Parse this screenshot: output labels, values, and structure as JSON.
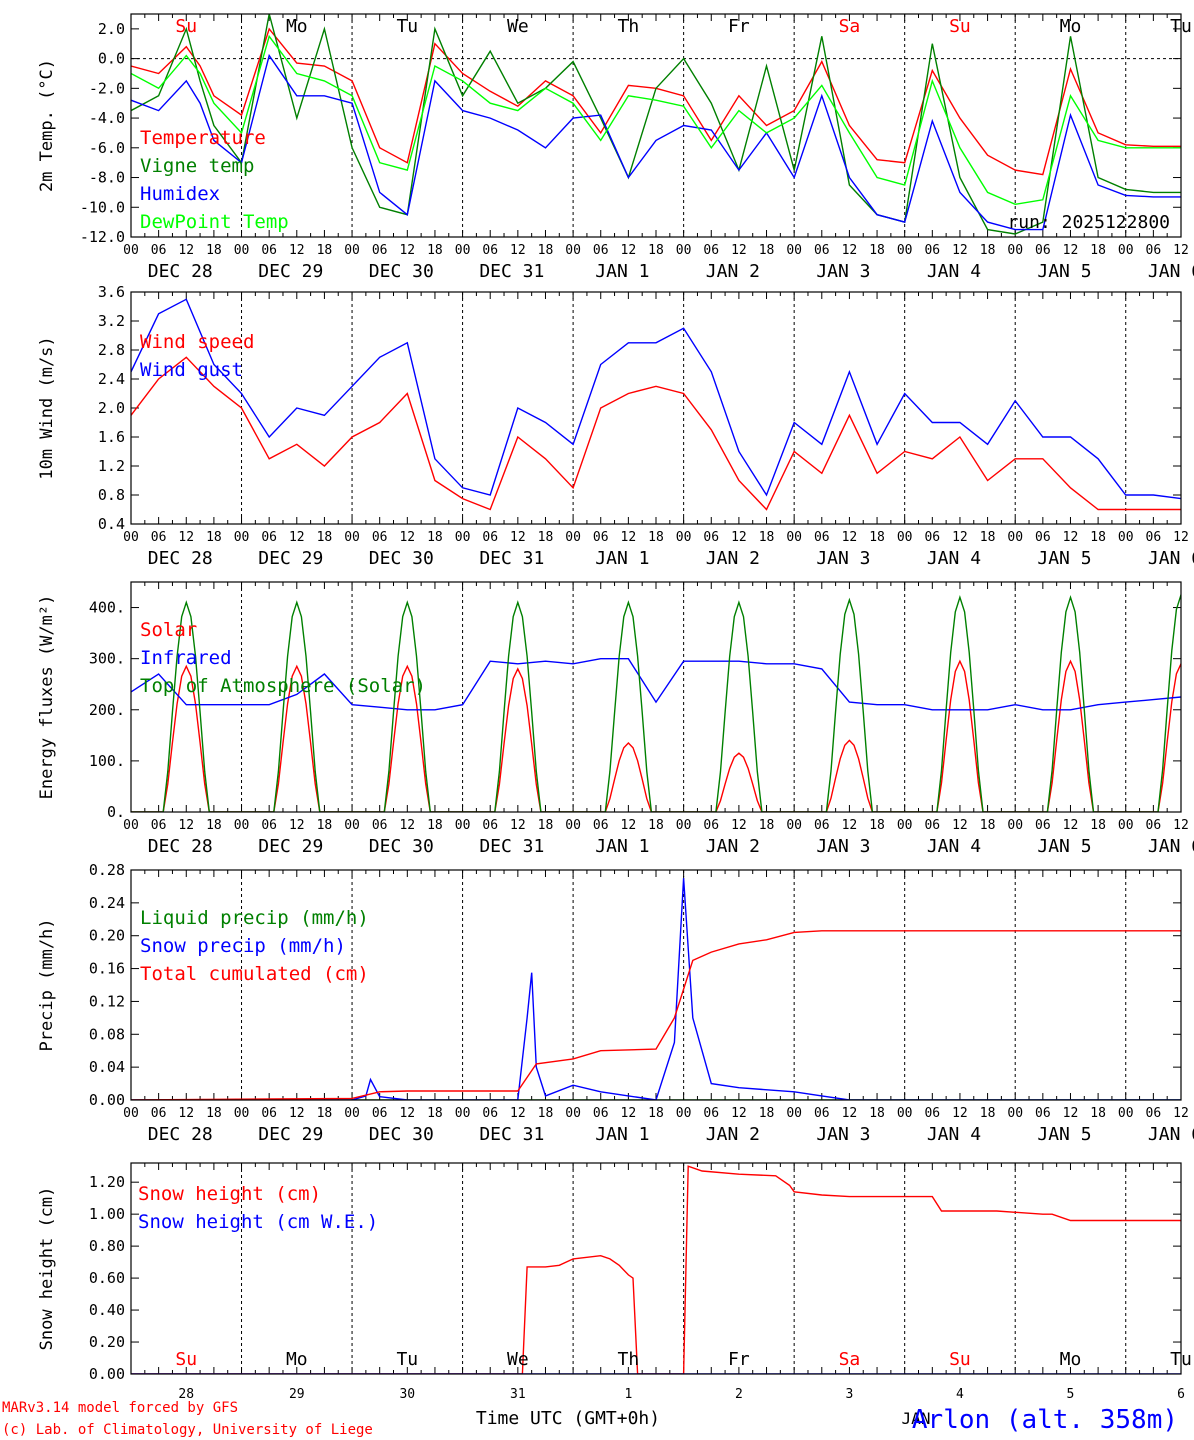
{
  "figure": {
    "run_label": "run: 2025122800",
    "station": "Arlon (alt. 358m)",
    "credit_line1": "MARv3.14 model forced by GFS",
    "credit_line2": "(c) Lab. of Climatology, University of Liege",
    "time_axis_label": "Time UTC (GMT+0h)",
    "month_label": "JAN"
  },
  "days": [
    {
      "dow": "Su",
      "date": "DEC 28",
      "num": "28",
      "weekend": true
    },
    {
      "dow": "Mo",
      "date": "DEC 29",
      "num": "29",
      "weekend": false
    },
    {
      "dow": "Tu",
      "date": "DEC 30",
      "num": "30",
      "weekend": false
    },
    {
      "dow": "We",
      "date": "DEC 31",
      "num": "31",
      "weekend": false
    },
    {
      "dow": "Th",
      "date": "JAN  1",
      "num": "1",
      "weekend": false
    },
    {
      "dow": "Fr",
      "date": "JAN  2",
      "num": "2",
      "weekend": false
    },
    {
      "dow": "Sa",
      "date": "JAN  3",
      "num": "3",
      "weekend": true
    },
    {
      "dow": "Su",
      "date": "JAN  4",
      "num": "4",
      "weekend": true
    },
    {
      "dow": "Mo",
      "date": "JAN  5",
      "num": "5",
      "weekend": false
    },
    {
      "dow": "Tu",
      "date": "JAN  6",
      "num": "6",
      "weekend": false
    }
  ],
  "hour_labels": [
    "00",
    "06",
    "12",
    "18"
  ],
  "colors": {
    "red": "#ff0000",
    "green": "#008000",
    "blue": "#0000ff",
    "lightgreen": "#00ff00",
    "weekend": "#ff0000",
    "axis": "#000000"
  },
  "chart_data": [
    {
      "type": "line",
      "ylabel": "2m Temp. (°C)",
      "ylim": [
        -12,
        3
      ],
      "yticks": [
        2.0,
        0.0,
        -2.0,
        -4.0,
        -6.0,
        -8.0,
        -10.0,
        -12.0
      ],
      "ytick_labels": [
        "2.0",
        "0.0",
        "-2.0",
        "-4.0",
        "-6.0",
        "-8.0",
        "-10.0",
        "-12.0"
      ],
      "x_unit": "hours since DEC 28 00 UTC",
      "zero_line": true,
      "series": [
        {
          "name": "Temperature",
          "color": "#ff0000",
          "x": [
            0,
            6,
            12,
            15,
            18,
            24,
            30,
            36,
            42,
            48,
            54,
            60,
            66,
            72,
            78,
            84,
            90,
            96,
            102,
            108,
            114,
            120,
            126,
            132,
            138,
            144,
            150,
            156,
            162,
            168,
            174,
            180,
            186,
            192,
            198,
            204,
            210,
            216,
            222,
            228
          ],
          "y": [
            -0.5,
            -1.0,
            0.8,
            -0.5,
            -2.5,
            -3.8,
            2.0,
            -0.3,
            -0.5,
            -1.5,
            -6.0,
            -7.0,
            1.0,
            -1.0,
            -2.2,
            -3.2,
            -1.5,
            -2.5,
            -5.0,
            -1.8,
            -2.0,
            -2.5,
            -5.5,
            -2.5,
            -4.5,
            -3.5,
            -0.2,
            -4.5,
            -6.8,
            -7.0,
            -0.8,
            -4.0,
            -6.5,
            -7.5,
            -7.8,
            -0.7,
            -5.0,
            -5.8,
            -5.9,
            -5.9
          ]
        },
        {
          "name": "Vigne temp",
          "color": "#008000",
          "x": [
            0,
            6,
            12,
            15,
            18,
            24,
            30,
            36,
            42,
            48,
            54,
            60,
            66,
            72,
            78,
            84,
            90,
            96,
            102,
            108,
            114,
            120,
            126,
            132,
            138,
            144,
            150,
            156,
            162,
            168,
            174,
            180,
            186,
            192,
            198,
            204,
            210,
            216,
            222,
            228
          ],
          "y": [
            -3.5,
            -2.5,
            2.0,
            -1.5,
            -4.5,
            -7.0,
            3.0,
            -4.0,
            2.0,
            -6.0,
            -10.0,
            -10.5,
            2.0,
            -2.5,
            0.5,
            -3.0,
            -2.0,
            -0.2,
            -4.0,
            -8.0,
            -2.0,
            0.0,
            -3.0,
            -7.5,
            -0.5,
            -7.5,
            1.5,
            -8.5,
            -10.5,
            -11.0,
            1.0,
            -8.0,
            -11.5,
            -11.8,
            -11.0,
            1.5,
            -8.0,
            -8.8,
            -9.0,
            -9.0
          ]
        },
        {
          "name": "Humidex",
          "color": "#0000ff",
          "x": [
            0,
            6,
            12,
            15,
            18,
            24,
            30,
            36,
            42,
            48,
            54,
            60,
            66,
            72,
            78,
            84,
            90,
            96,
            102,
            108,
            114,
            120,
            126,
            132,
            138,
            144,
            150,
            156,
            162,
            168,
            174,
            180,
            186,
            192,
            198,
            204,
            210,
            216,
            222,
            228
          ],
          "y": [
            -2.8,
            -3.5,
            -1.5,
            -3.0,
            -5.5,
            -7.0,
            0.2,
            -2.5,
            -2.5,
            -3.0,
            -9.0,
            -10.5,
            -1.5,
            -3.5,
            -4.0,
            -4.8,
            -6.0,
            -4.0,
            -3.8,
            -8.0,
            -5.5,
            -4.5,
            -4.8,
            -7.5,
            -5.0,
            -8.0,
            -2.5,
            -8.0,
            -10.5,
            -11.0,
            -4.2,
            -9.0,
            -11.0,
            -11.5,
            -11.5,
            -3.8,
            -8.5,
            -9.2,
            -9.3,
            -9.3
          ]
        },
        {
          "name": "DewPoint Temp",
          "color": "#00ff00",
          "x": [
            0,
            6,
            12,
            15,
            18,
            24,
            30,
            36,
            42,
            48,
            54,
            60,
            66,
            72,
            78,
            84,
            90,
            96,
            102,
            108,
            114,
            120,
            126,
            132,
            138,
            144,
            150,
            156,
            162,
            168,
            174,
            180,
            186,
            192,
            198,
            204,
            210,
            216,
            222,
            228
          ],
          "y": [
            -1.0,
            -2.0,
            0.2,
            -1.0,
            -3.0,
            -5.0,
            1.5,
            -1.0,
            -1.5,
            -2.5,
            -7.0,
            -7.5,
            -0.5,
            -1.5,
            -3.0,
            -3.5,
            -2.0,
            -3.0,
            -5.5,
            -2.5,
            -2.8,
            -3.2,
            -6.0,
            -3.5,
            -5.0,
            -4.0,
            -1.8,
            -5.0,
            -8.0,
            -8.5,
            -1.5,
            -6.0,
            -9.0,
            -9.8,
            -9.5,
            -2.5,
            -5.5,
            -6.0,
            -6.0,
            -6.0
          ]
        }
      ]
    },
    {
      "type": "line",
      "ylabel": "10m Wind (m/s)",
      "ylim": [
        0.4,
        3.6
      ],
      "yticks": [
        3.6,
        3.2,
        2.8,
        2.4,
        2.0,
        1.6,
        1.2,
        0.8,
        0.4
      ],
      "ytick_labels": [
        "3.6",
        "3.2",
        "2.8",
        "2.4",
        "2.0",
        "1.6",
        "1.2",
        "0.8",
        "0.4"
      ],
      "x_unit": "hours since DEC 28 00 UTC",
      "series": [
        {
          "name": "Wind speed",
          "color": "#ff0000",
          "x": [
            0,
            6,
            12,
            18,
            24,
            30,
            36,
            42,
            48,
            54,
            60,
            66,
            72,
            78,
            84,
            90,
            96,
            102,
            108,
            114,
            120,
            126,
            132,
            138,
            144,
            150,
            156,
            162,
            168,
            174,
            180,
            186,
            192,
            198,
            204,
            210,
            216,
            222,
            228
          ],
          "y": [
            1.9,
            2.4,
            2.7,
            2.3,
            2.0,
            1.3,
            1.5,
            1.2,
            1.6,
            1.8,
            2.2,
            1.0,
            0.75,
            0.6,
            1.6,
            1.3,
            0.9,
            2.0,
            2.2,
            2.3,
            2.2,
            1.7,
            1.0,
            0.6,
            1.4,
            1.1,
            1.9,
            1.1,
            1.4,
            1.3,
            1.6,
            1.0,
            1.3,
            1.3,
            0.9,
            0.6,
            0.6,
            0.6,
            0.6
          ]
        },
        {
          "name": "Wind gust",
          "color": "#0000ff",
          "x": [
            0,
            6,
            12,
            18,
            24,
            30,
            36,
            42,
            48,
            54,
            60,
            66,
            72,
            78,
            84,
            90,
            96,
            102,
            108,
            114,
            120,
            126,
            132,
            138,
            144,
            150,
            156,
            162,
            168,
            174,
            180,
            186,
            192,
            198,
            204,
            210,
            216,
            222,
            228
          ],
          "y": [
            2.5,
            3.3,
            3.5,
            2.6,
            2.2,
            1.6,
            2.0,
            1.9,
            2.3,
            2.7,
            2.9,
            1.3,
            0.9,
            0.8,
            2.0,
            1.8,
            1.5,
            2.6,
            2.9,
            2.9,
            3.1,
            2.5,
            1.4,
            0.8,
            1.8,
            1.5,
            2.5,
            1.5,
            2.2,
            1.8,
            1.8,
            1.5,
            2.1,
            1.6,
            1.6,
            1.3,
            0.8,
            0.8,
            0.75
          ]
        }
      ]
    },
    {
      "type": "line",
      "ylabel": "Energy fluxes (W/m²)",
      "ylim": [
        0,
        450
      ],
      "yticks": [
        400,
        300,
        200,
        100,
        0
      ],
      "ytick_labels": [
        "400.",
        "300.",
        "200.",
        "100.",
        "0."
      ],
      "x_unit": "hours since DEC 28 00 UTC",
      "series": [
        {
          "name": "Solar",
          "color": "#ff0000",
          "daily_peak_hour": 12,
          "daily_peaks": [
            285,
            285,
            285,
            280,
            135,
            115,
            140,
            295,
            295,
            290
          ]
        },
        {
          "name": "Infrared",
          "color": "#0000ff",
          "x": [
            0,
            6,
            12,
            18,
            24,
            30,
            36,
            42,
            48,
            54,
            60,
            66,
            72,
            78,
            84,
            90,
            96,
            102,
            108,
            114,
            120,
            126,
            132,
            138,
            144,
            150,
            156,
            162,
            168,
            174,
            180,
            186,
            192,
            198,
            204,
            210,
            216,
            222,
            228
          ],
          "y": [
            235,
            270,
            210,
            210,
            210,
            210,
            230,
            270,
            210,
            205,
            200,
            200,
            210,
            295,
            290,
            295,
            290,
            300,
            300,
            215,
            295,
            295,
            295,
            290,
            290,
            280,
            215,
            210,
            210,
            200,
            200,
            200,
            210,
            200,
            200,
            210,
            215,
            220,
            225
          ]
        },
        {
          "name": "Top of Atmosphere (Solar)",
          "color": "#008000",
          "daily_peak_hour": 12,
          "daily_peaks": [
            410,
            410,
            410,
            410,
            410,
            410,
            415,
            420,
            420,
            425
          ]
        }
      ]
    },
    {
      "type": "line",
      "ylabel": "Precip (mm/h)",
      "ylim": [
        0,
        0.28
      ],
      "yticks": [
        0.28,
        0.24,
        0.2,
        0.16,
        0.12,
        0.08,
        0.04,
        0.0
      ],
      "ytick_labels": [
        "0.28",
        "0.24",
        "0.20",
        "0.16",
        "0.12",
        "0.08",
        "0.04",
        "0.00"
      ],
      "x_unit": "hours since DEC 28 00 UTC",
      "series": [
        {
          "name": "Liquid precip (mm/h)",
          "color": "#008000",
          "x": [
            0,
            228
          ],
          "y": [
            0,
            0
          ]
        },
        {
          "name": "Snow precip (mm/h)",
          "color": "#0000ff",
          "x": [
            0,
            48,
            51,
            52,
            54,
            60,
            84,
            86,
            87,
            88,
            90,
            96,
            102,
            114,
            118,
            120,
            122,
            126,
            132,
            144,
            150,
            156,
            228
          ],
          "y": [
            0,
            0,
            0.005,
            0.025,
            0.004,
            0,
            0,
            0.1,
            0.155,
            0.04,
            0.005,
            0.018,
            0.01,
            0,
            0.07,
            0.27,
            0.1,
            0.02,
            0.015,
            0.01,
            0.005,
            0,
            0
          ]
        },
        {
          "name": "Total cumulated (cm)",
          "color": "#ff0000",
          "x": [
            0,
            48,
            54,
            60,
            84,
            88,
            96,
            102,
            114,
            118,
            122,
            126,
            132,
            138,
            144,
            150,
            228
          ],
          "y": [
            0,
            0.002,
            0.01,
            0.011,
            0.011,
            0.044,
            0.05,
            0.06,
            0.062,
            0.1,
            0.17,
            0.18,
            0.19,
            0.195,
            0.204,
            0.206,
            0.206
          ]
        }
      ]
    },
    {
      "type": "line",
      "ylabel": "Snow height (cm)",
      "ylim": [
        0,
        1.32
      ],
      "yticks": [
        1.2,
        1.0,
        0.8,
        0.6,
        0.4,
        0.2,
        0.0
      ],
      "ytick_labels": [
        "1.20",
        "1.00",
        "0.80",
        "0.60",
        "0.40",
        "0.20",
        "0.00"
      ],
      "x_unit": "hours since DEC 28 00 UTC",
      "series": [
        {
          "name": "Snow height (cm)",
          "color": "#ff0000",
          "x": [
            0,
            85,
            86,
            90,
            93,
            96,
            102,
            104,
            106,
            108,
            109,
            110,
            118,
            120,
            121,
            124,
            132,
            140,
            143,
            144,
            150,
            156,
            174,
            176,
            188,
            198,
            200,
            204,
            228
          ],
          "y": [
            0,
            0,
            0.67,
            0.67,
            0.68,
            0.72,
            0.74,
            0.72,
            0.68,
            0.62,
            0.6,
            0,
            0,
            0,
            1.3,
            1.27,
            1.25,
            1.24,
            1.18,
            1.14,
            1.12,
            1.11,
            1.11,
            1.02,
            1.02,
            1.0,
            1.0,
            0.96,
            0.96
          ]
        },
        {
          "name": "Snow height (cm W.E.)",
          "color": "#0000ff",
          "x": [
            0,
            228
          ],
          "y": [
            0,
            0
          ]
        }
      ]
    }
  ]
}
